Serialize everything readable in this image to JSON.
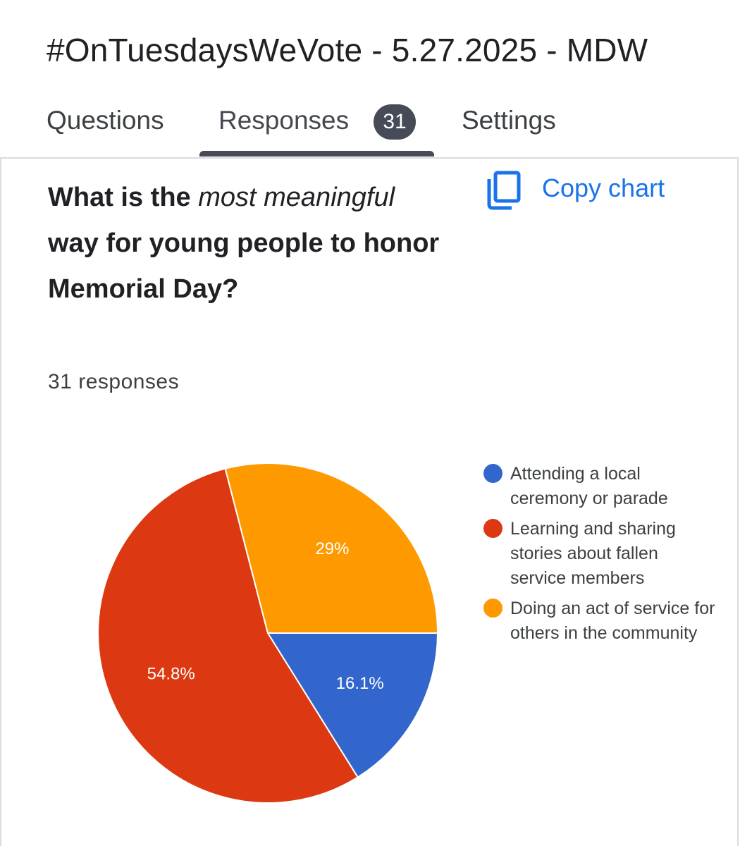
{
  "header": {
    "title": "#OnTuesdaysWeVote - 5.27.2025 - MDW"
  },
  "tabs": {
    "questions": "Questions",
    "responses": "Responses",
    "responses_count": "31",
    "settings": "Settings"
  },
  "question": {
    "text_part1": "What is the ",
    "text_italic": "most meaningful",
    "text_part2": " way for young people to honor Memorial Day?",
    "response_count": "31 responses",
    "copy_chart_label": "Copy chart",
    "copy_icon": "copy-icon"
  },
  "colors": {
    "blue": "#3366cc",
    "red": "#dc3912",
    "orange": "#ff9900",
    "link": "#1a73e8"
  },
  "chart_data": {
    "type": "pie",
    "total_responses": 31,
    "slices": [
      {
        "label": "Attending a local ceremony or parade",
        "value": 16.1,
        "display": "16.1%",
        "color": "#3366cc"
      },
      {
        "label": "Learning and sharing stories about fallen service members",
        "value": 54.8,
        "display": "54.8%",
        "color": "#dc3912"
      },
      {
        "label": "Doing an act of service for others in the community",
        "value": 29,
        "display": "29%",
        "color": "#ff9900"
      }
    ],
    "legend_position": "right"
  }
}
